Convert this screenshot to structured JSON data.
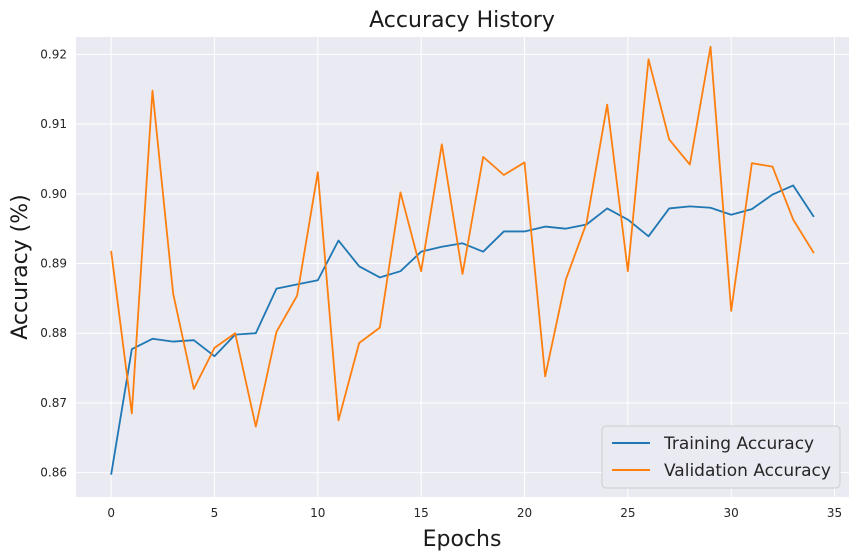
{
  "chart_data": {
    "type": "line",
    "title": "Accuracy History",
    "xlabel": "Epochs",
    "ylabel": "Accuracy (%)",
    "xlim": [
      -1.7,
      35.7
    ],
    "ylim": [
      0.8565,
      0.9225
    ],
    "xticks": [
      0,
      5,
      10,
      15,
      20,
      25,
      30,
      35
    ],
    "yticks": [
      0.86,
      0.87,
      0.88,
      0.89,
      0.9,
      0.91,
      0.92
    ],
    "ytick_labels": [
      "0.86",
      "0.87",
      "0.88",
      "0.89",
      "0.90",
      "0.91",
      "0.92"
    ],
    "grid": true,
    "legend": "bottom-right",
    "x": [
      0,
      1,
      2,
      3,
      4,
      5,
      6,
      7,
      8,
      9,
      10,
      11,
      12,
      13,
      14,
      15,
      16,
      17,
      18,
      19,
      20,
      21,
      22,
      23,
      24,
      25,
      26,
      27,
      28,
      29,
      30,
      31,
      32,
      33,
      34
    ],
    "series": [
      {
        "name": "Training Accuracy",
        "color": "#1f77b4",
        "values": [
          0.8597,
          0.8777,
          0.8792,
          0.8788,
          0.879,
          0.8767,
          0.8798,
          0.88,
          0.8864,
          0.887,
          0.8876,
          0.8933,
          0.8896,
          0.888,
          0.8889,
          0.8917,
          0.8924,
          0.8929,
          0.8917,
          0.8946,
          0.8946,
          0.8953,
          0.895,
          0.8956,
          0.8979,
          0.8963,
          0.8939,
          0.8979,
          0.8982,
          0.898,
          0.897,
          0.8978,
          0.8999,
          0.9012,
          0.8967
        ]
      },
      {
        "name": "Validation Accuracy",
        "color": "#ff7f0e",
        "values": [
          0.8918,
          0.8685,
          0.9148,
          0.8857,
          0.872,
          0.8779,
          0.88,
          0.8666,
          0.8802,
          0.8854,
          0.9031,
          0.8675,
          0.8786,
          0.8808,
          0.9002,
          0.8889,
          0.9071,
          0.8885,
          0.9053,
          0.9027,
          0.9045,
          0.8738,
          0.8877,
          0.8958,
          0.9128,
          0.8889,
          0.9193,
          0.9078,
          0.9042,
          0.9211,
          0.8832,
          0.9044,
          0.9039,
          0.8963,
          0.8915
        ]
      }
    ],
    "colors": {
      "plot_bg": "#eaeaf2",
      "grid": "#ffffff"
    }
  }
}
